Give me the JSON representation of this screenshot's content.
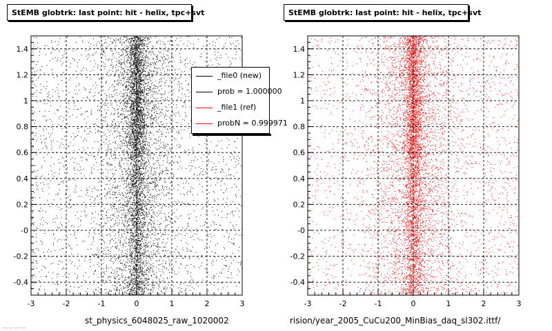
{
  "panels": [
    {
      "title": "StEMB globtrk: last point: hit - helix, tpc+svt",
      "file_label": "st_physics_6048025_raw_1020002",
      "marker_color": "#000000"
    },
    {
      "title": "StEMB globtrk: last point: hit - helix, tpc+svt",
      "file_label": "rision/year_2005_CuCu200_MinBias_daq_sl302.ittf/",
      "marker_color": "#ff0000"
    }
  ],
  "footer_text": "... ... ... ...",
  "legend": {
    "entries": [
      {
        "label": "_file0 (new)",
        "color": "#000000"
      },
      {
        "label": "prob = 1.000000",
        "color": "#000000"
      },
      {
        "label": "_file1 (ref)",
        "color": "#ff0000"
      },
      {
        "label": "probN = 0.999971",
        "color": "#ff0000"
      }
    ]
  },
  "chart_data": [
    {
      "type": "scatter",
      "title": "StEMB globtrk: last point: hit - helix, tpc+svt",
      "xlabel": "",
      "ylabel": "",
      "xlim": [
        -3,
        3
      ],
      "ylim": [
        -0.5,
        1.5
      ],
      "x_ticks": [
        "-3",
        "-2",
        "-1",
        "0",
        "1",
        "2",
        "3"
      ],
      "y_ticks": [
        "-0.4",
        "-0.2",
        "-0",
        "0.2",
        "0.4",
        "0.6",
        "0.8",
        "1",
        "1.2",
        "1.4"
      ],
      "grid": true,
      "series": [
        {
          "name": "_file0 (new)",
          "color": "#000000",
          "distribution": "dense column centered at x≈0 (width ~0.25), broader band around x≈0 (width ~1), uniform background over full range",
          "density_profile_x": [
            [
              -3,
              0.25
            ],
            [
              -1,
              0.45
            ],
            [
              -0.3,
              0.8
            ],
            [
              0,
              1.0
            ],
            [
              0.3,
              0.8
            ],
            [
              1,
              0.45
            ],
            [
              3,
              0.3
            ]
          ]
        }
      ],
      "grid_dashed": true
    },
    {
      "type": "scatter",
      "title": "StEMB globtrk: last point: hit - helix, tpc+svt",
      "xlabel": "",
      "ylabel": "",
      "xlim": [
        -3,
        3
      ],
      "ylim": [
        -0.5,
        1.5
      ],
      "x_ticks": [
        "-3",
        "-2",
        "-1",
        "0",
        "1",
        "2",
        "3"
      ],
      "y_ticks": [
        "-0.4",
        "-0.2",
        "-0",
        "0.2",
        "0.4",
        "0.6",
        "0.8",
        "1",
        "1.2",
        "1.4"
      ],
      "grid": true,
      "series": [
        {
          "name": "_file1 (ref)",
          "color": "#ff0000",
          "distribution": "dense column centered at x≈0 (width ~0.25), broader band around x≈0 (width ~1), uniform background, denser at lower right",
          "density_profile_x": [
            [
              -3,
              0.15
            ],
            [
              -1,
              0.35
            ],
            [
              -0.3,
              0.75
            ],
            [
              0,
              1.0
            ],
            [
              0.3,
              0.75
            ],
            [
              1,
              0.4
            ],
            [
              3,
              0.3
            ]
          ]
        }
      ],
      "grid_dashed": true
    }
  ]
}
